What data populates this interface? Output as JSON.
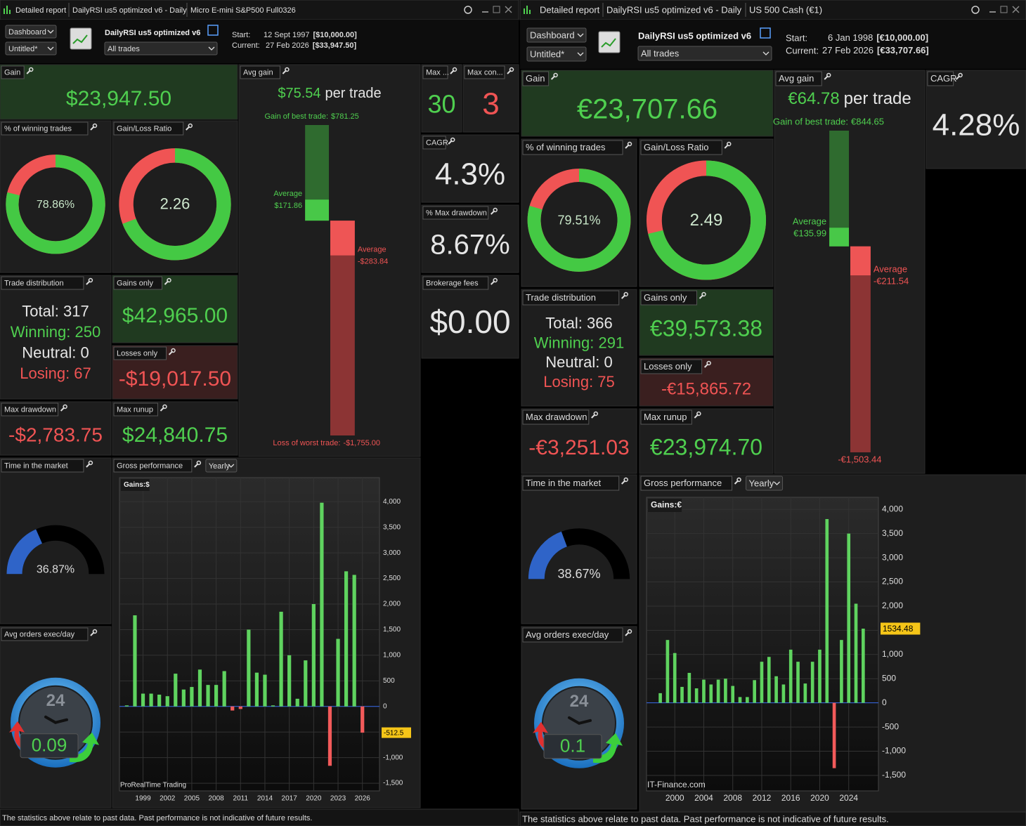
{
  "panels": [
    {
      "tabs": [
        "Detailed report",
        "DailyRSI us5 optimized v6 - Daily",
        "Micro E-mini S&P500 Full0326"
      ],
      "dashboard": "Dashboard",
      "view": "Untitled*",
      "system": "DailyRSI us5 optimized v6",
      "filter": "All trades",
      "start": {
        "label": "Start:",
        "date": "12 Sept 1997",
        "capital": "[$10,000.00]"
      },
      "current": {
        "label": "Current:",
        "date": "27 Feb 2026",
        "capital": "[$33,947.50]"
      },
      "tiles": {
        "gain": {
          "title": "Gain",
          "value": "$23,947.50"
        },
        "avg_gain": {
          "title": "Avg gain",
          "value": "$75.54",
          "per_trade": "per trade",
          "best_label": "Gain of best trade:",
          "best": {
            "value": 781.25,
            "label": "$781.25"
          },
          "average_label": "Average",
          "avg_win": {
            "value": 171.86,
            "label": "$171.86"
          },
          "avg_loss": {
            "value": -283.84,
            "label": "-$283.84"
          },
          "worst_label": "Loss of worst trade:",
          "worst": {
            "value": -1755,
            "label": "-$1,755.00"
          }
        },
        "max_wins": {
          "title": "Max ...",
          "value": "30"
        },
        "max_losses": {
          "title": "Max con...",
          "value": "3"
        },
        "cagr": {
          "title": "CAGR",
          "value": "4.3%"
        },
        "max_dd_pct": {
          "title": "% Max drawdown",
          "value": "8.67%"
        },
        "brokerage": {
          "title": "Brokerage fees",
          "value": "$0.00"
        },
        "win_pct": {
          "title": "% of winning trades",
          "value": {
            "value": 78.86,
            "label": "78.86%"
          }
        },
        "gl_ratio": {
          "title": "Gain/Loss Ratio",
          "value": 2.26
        },
        "trade_dist": {
          "title": "Trade distribution",
          "lines": [
            "Total: 317",
            "Winning: 250",
            "Neutral: 0",
            "Losing: 67"
          ]
        },
        "gains_only": {
          "title": "Gains only",
          "value": "$42,965.00"
        },
        "losses_only": {
          "title": "Losses only",
          "value": "-$19,017.50"
        },
        "max_dd": {
          "title": "Max drawdown",
          "value": "-$2,783.75"
        },
        "max_runup": {
          "title": "Max runup",
          "value": "$24,840.75"
        },
        "time_market": {
          "title": "Time in the market",
          "value": {
            "value": 36.87,
            "label": "36.87%"
          }
        },
        "avg_orders": {
          "title": "Avg orders exec/day",
          "clock": "24",
          "value": 0.09
        },
        "gross": {
          "type": "bar",
          "title": "Gross performance",
          "period": "Yearly",
          "axis_label": "Gains:$",
          "watermark": "ProRealTime Trading",
          "x": [
            1997,
            1998,
            1999,
            2000,
            2001,
            2002,
            2003,
            2004,
            2005,
            2006,
            2007,
            2008,
            2009,
            2010,
            2011,
            2012,
            2013,
            2014,
            2015,
            2016,
            2017,
            2018,
            2019,
            2020,
            2021,
            2022,
            2023,
            2024,
            2025,
            2026
          ],
          "values": [
            20,
            1780,
            250,
            250,
            230,
            200,
            640,
            330,
            380,
            720,
            420,
            420,
            690,
            -80,
            -50,
            1500,
            660,
            620,
            20,
            1850,
            1000,
            150,
            900,
            2000,
            3980,
            -1160,
            1320,
            2640,
            2570,
            -512.5
          ],
          "xlim": [
            1996.1,
            2028.1
          ],
          "xticks": [
            1999,
            2002,
            2005,
            2008,
            2011,
            2014,
            2017,
            2020,
            2023,
            2026
          ],
          "ylim": [
            -1650,
            4470
          ],
          "yticks": [
            {
              "value": 4000,
              "label": "4,000"
            },
            {
              "value": 3500,
              "label": "3,500"
            },
            {
              "value": 3000,
              "label": "3,000"
            },
            {
              "value": 2500,
              "label": "2,500"
            },
            {
              "value": 2000,
              "label": "2,000"
            },
            {
              "value": 1500,
              "label": "1,500"
            },
            {
              "value": 1000,
              "label": "1,000"
            },
            500,
            0,
            -500,
            {
              "value": -1000,
              "label": "-1,000"
            },
            {
              "value": -1500,
              "label": "-1,500"
            }
          ],
          "value_marker": -512.5
        }
      }
    },
    {
      "tabs": [
        "Detailed report",
        "DailyRSI us5 optimized v6 - Daily",
        "US 500 Cash (€1)"
      ],
      "dashboard": "Dashboard",
      "view": "Untitled*",
      "system": "DailyRSI us5 optimized v6",
      "filter": "All trades",
      "start": {
        "label": "Start:",
        "date": "6 Jan 1998",
        "capital": "[€10,000.00]"
      },
      "current": {
        "label": "Current:",
        "date": "27 Feb 2026",
        "capital": "[€33,707.66]"
      },
      "tiles": {
        "gain": {
          "title": "Gain",
          "value": "€23,707.66"
        },
        "avg_gain": {
          "title": "Avg gain",
          "value": "€64.78",
          "per_trade": "per trade",
          "best_label": "Gain of best trade:",
          "best": {
            "value": 844.65,
            "label": "€844.65"
          },
          "average_label": "Average",
          "avg_win": {
            "value": 135.99,
            "label": "€135.99"
          },
          "avg_loss": {
            "value": -211.54,
            "label": "-€211.54"
          },
          "worst": {
            "value": -1503.44,
            "label": "-€1,503.44"
          }
        },
        "cagr": {
          "title": "CAGR",
          "value": "4.28%"
        },
        "win_pct": {
          "title": "% of winning trades",
          "value": {
            "value": 79.51,
            "label": "79.51%"
          }
        },
        "gl_ratio": {
          "title": "Gain/Loss Ratio",
          "value": 2.49
        },
        "trade_dist": {
          "title": "Trade distribution",
          "lines": [
            "Total: 366",
            "Winning: 291",
            "Neutral: 0",
            "Losing: 75"
          ]
        },
        "gains_only": {
          "title": "Gains only",
          "value": "€39,573.38"
        },
        "losses_only": {
          "title": "Losses only",
          "value": "-€15,865.72"
        },
        "max_dd": {
          "title": "Max drawdown",
          "value": "-€3,251.03"
        },
        "max_runup": {
          "title": "Max runup",
          "value": "€23,974.70"
        },
        "time_market": {
          "title": "Time in the market",
          "value": {
            "value": 38.67,
            "label": "38.67%"
          }
        },
        "avg_orders": {
          "title": "Avg orders exec/day",
          "clock": "24",
          "value": 0.1
        },
        "gross": {
          "type": "bar",
          "title": "Gross performance",
          "period": "Yearly",
          "axis_label": "Gains:€",
          "watermark": "IT-Finance.com",
          "x": [
            1998,
            1999,
            2000,
            2001,
            2002,
            2003,
            2004,
            2005,
            2006,
            2007,
            2008,
            2009,
            2010,
            2011,
            2012,
            2013,
            2014,
            2015,
            2016,
            2017,
            2018,
            2019,
            2020,
            2021,
            2022,
            2023,
            2024,
            2025,
            2026
          ],
          "values": [
            200,
            1300,
            1030,
            330,
            620,
            300,
            480,
            380,
            480,
            500,
            350,
            120,
            120,
            470,
            850,
            950,
            550,
            380,
            1100,
            850,
            400,
            850,
            1100,
            3800,
            -1350,
            1300,
            3500,
            2050,
            1534.48
          ],
          "xlim": [
            1996.1,
            2028.1
          ],
          "xticks": [
            2000,
            2004,
            2008,
            2012,
            2016,
            2020,
            2024
          ],
          "ylim": [
            -1820,
            4250
          ],
          "yticks": [
            {
              "value": 4000,
              "label": "4,000"
            },
            {
              "value": 3500,
              "label": "3,500"
            },
            {
              "value": 3000,
              "label": "3,000"
            },
            {
              "value": 2500,
              "label": "2,500"
            },
            {
              "value": 2000,
              "label": "2,000"
            },
            {
              "value": 1500,
              "label": "1,500"
            },
            {
              "value": 1000,
              "label": "1,000"
            },
            500,
            0,
            -500,
            {
              "value": -1000,
              "label": "-1,000"
            },
            {
              "value": -1500,
              "label": "-1,500"
            }
          ],
          "value_marker": 1534.48
        }
      }
    }
  ],
  "footer": "The statistics above relate to past data. Past performance is not indicative of future results."
}
